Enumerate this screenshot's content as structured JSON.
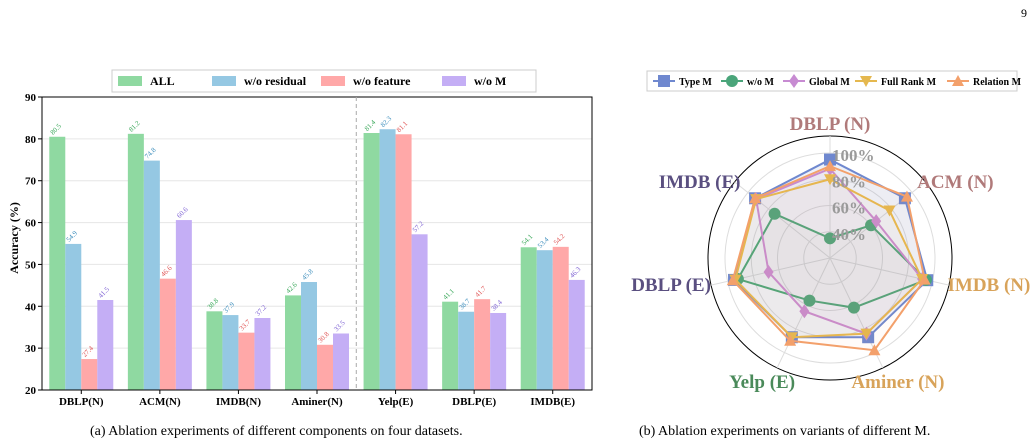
{
  "page_number": "9",
  "captions": {
    "a": "(a) Ablation experiments of different components on four datasets.",
    "b": "(b) Ablation experiments on variants of different M."
  },
  "chart_data": [
    {
      "type": "bar",
      "title": "",
      "xlabel": "",
      "ylabel": "Accuracy (%)",
      "ylim": [
        20,
        90
      ],
      "yticks": [
        20,
        30,
        40,
        50,
        60,
        70,
        80,
        90
      ],
      "grid": "horizontal",
      "legend": "top",
      "categories": [
        "DBLP(N)",
        "ACM(N)",
        "IMDB(N)",
        "Aminer(N)",
        "Yelp(E)",
        "DBLP(E)",
        "IMDB(E)"
      ],
      "separator_after": "Aminer(N)",
      "series": [
        {
          "name": "ALL",
          "color": "#8fd9a1",
          "label_color": "#3aa85a",
          "values": [
            80.5,
            81.2,
            38.8,
            42.6,
            81.4,
            41.1,
            54.1
          ]
        },
        {
          "name": "w/o residual",
          "color": "#95c8e3",
          "label_color": "#3f8fbd",
          "values": [
            54.9,
            74.8,
            37.9,
            45.8,
            82.3,
            38.7,
            53.4
          ]
        },
        {
          "name": "w/o feature",
          "color": "#ffa8a8",
          "label_color": "#e05555",
          "values": [
            27.4,
            46.6,
            33.7,
            30.8,
            81.1,
            41.7,
            54.2
          ]
        },
        {
          "name": "w/o M",
          "color": "#c4aef5",
          "label_color": "#7f63d4",
          "values": [
            41.5,
            60.6,
            37.2,
            33.5,
            57.2,
            38.4,
            46.3
          ]
        }
      ]
    },
    {
      "type": "radar",
      "title": "",
      "legend": "top",
      "axes": [
        "DBLP (N)",
        "ACM (N)",
        "IMDB (N)",
        "Aminer (N)",
        "Yelp (E)",
        "DBLP (E)",
        "IMDB (E)"
      ],
      "axis_label_colors": [
        "#b07a7a",
        "#b07a7a",
        "#d8a35a",
        "#d8a35a",
        "#4a8a5a",
        "#5a4f80",
        "#5a4f80"
      ],
      "range": [
        20,
        100
      ],
      "ring_labels": [
        "40%",
        "60%",
        "80%",
        "100%"
      ],
      "series": [
        {
          "name": "Type M",
          "color": "#6f88cf",
          "marker": "square",
          "values": [
            95,
            93,
            96,
            87,
            87,
            95,
            93
          ]
        },
        {
          "name": "w/o M",
          "color": "#4aa57a",
          "marker": "circle",
          "values": [
            35,
            60,
            95,
            62,
            56,
            92,
            74
          ]
        },
        {
          "name": "Global M",
          "color": "#c78bd2",
          "marker": "diamond",
          "values": [
            88,
            65,
            92,
            84,
            65,
            68,
            92
          ]
        },
        {
          "name": "Full Rank M",
          "color": "#e5b84f",
          "marker": "triangle-down",
          "values": [
            80,
            78,
            92,
            84,
            87,
            94,
            92
          ]
        },
        {
          "name": "Relation M",
          "color": "#f3a06b",
          "marker": "triangle-up",
          "values": [
            90,
            95,
            94,
            98,
            90,
            96,
            93
          ]
        }
      ]
    }
  ]
}
